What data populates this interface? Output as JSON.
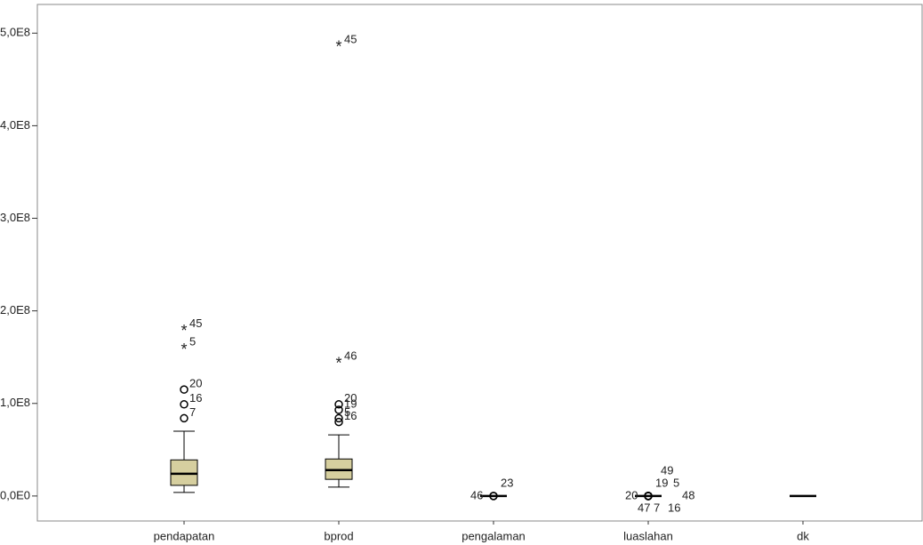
{
  "chart_data": {
    "type": "box",
    "categories": [
      "pendapatan",
      "bprod",
      "pengalaman",
      "luaslahan",
      "dk"
    ],
    "color": "#d6cf9f",
    "ylim": [
      -27000000,
      531000000
    ],
    "yticks": [
      {
        "value": 0,
        "label": "0,0E0"
      },
      {
        "value": 100000000,
        "label": "1,0E8"
      },
      {
        "value": 200000000,
        "label": "2,0E8"
      },
      {
        "value": 300000000,
        "label": "3,0E8"
      },
      {
        "value": 400000000,
        "label": "4,0E8"
      },
      {
        "value": 500000000,
        "label": "5,0E8"
      }
    ],
    "boxes": [
      {
        "min": 3800000,
        "q1": 11500000,
        "median": 24000000,
        "q3": 39000000,
        "max": 70000000,
        "outliers": [
          {
            "value": 84000000,
            "label": "7",
            "kind": "circle"
          },
          {
            "value": 99000000,
            "label": "16",
            "kind": "circle"
          },
          {
            "value": 115000000,
            "label": "20",
            "kind": "circle"
          },
          {
            "value": 160000000,
            "label": "5",
            "kind": "star"
          },
          {
            "value": 180000000,
            "label": "45",
            "kind": "star"
          }
        ]
      },
      {
        "min": 9600000,
        "q1": 18000000,
        "median": 28000000,
        "q3": 40000000,
        "max": 66000000,
        "outliers": [
          {
            "value": 80000000,
            "label": "16",
            "kind": "circle"
          },
          {
            "value": 84000000,
            "label": "5",
            "kind": "circle"
          },
          {
            "value": 93000000,
            "label": "19",
            "kind": "circle"
          },
          {
            "value": 99000000,
            "label": "20",
            "kind": "circle"
          },
          {
            "value": 145000000,
            "label": "46",
            "kind": "star"
          },
          {
            "value": 487000000,
            "label": "45",
            "kind": "star"
          }
        ]
      },
      {
        "min": 0,
        "q1": 0,
        "median": 0,
        "q3": 0,
        "max": 0,
        "outliers": [
          {
            "value": 0,
            "label": "23",
            "kind": "circle"
          },
          {
            "value": 0,
            "label": "46",
            "kind": "circle"
          }
        ]
      },
      {
        "min": 0,
        "q1": 0,
        "median": 0,
        "q3": 0,
        "max": 0,
        "outliers": [
          {
            "value": 0,
            "label": "19",
            "kind": "circle"
          },
          {
            "value": 0,
            "label": "20",
            "kind": "circle"
          },
          {
            "value": 0,
            "label": "5",
            "kind": "circle"
          },
          {
            "value": 0,
            "label": "49",
            "kind": "circle"
          },
          {
            "value": 0,
            "label": "48",
            "kind": "circle"
          },
          {
            "value": 0,
            "label": "47",
            "kind": "circle"
          },
          {
            "value": 0,
            "label": "7",
            "kind": "circle"
          },
          {
            "value": 0,
            "label": "16",
            "kind": "circle"
          }
        ]
      },
      {
        "min": 0,
        "q1": 0,
        "median": 0,
        "q3": 0,
        "max": 0,
        "outliers": []
      }
    ]
  }
}
